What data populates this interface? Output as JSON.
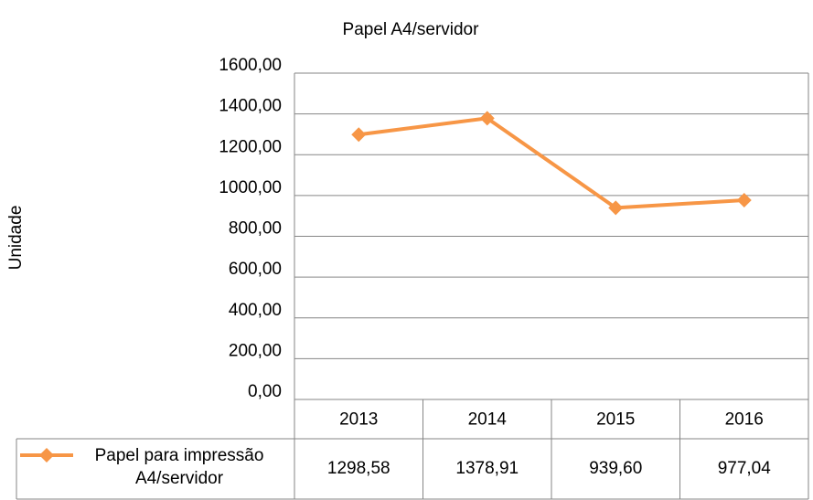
{
  "chart_data": {
    "type": "line",
    "title": "Papel A4/servidor",
    "y_label": "Unidade",
    "categories": [
      "2013",
      "2014",
      "2015",
      "2016"
    ],
    "series": [
      {
        "name": "Papel para impressão A4/servidor",
        "color": "#f79646",
        "values": [
          1298.58,
          1378.91,
          939.6,
          977.04
        ],
        "value_labels": [
          "1298,58",
          "1378,91",
          "939,60",
          "977,04"
        ]
      }
    ],
    "ylim": [
      0,
      1600
    ],
    "yticks": [
      {
        "value": 0,
        "label": "0,00"
      },
      {
        "value": 200,
        "label": "200,00"
      },
      {
        "value": 400,
        "label": "400,00"
      },
      {
        "value": 600,
        "label": "600,00"
      },
      {
        "value": 800,
        "label": "800,00"
      },
      {
        "value": 1000,
        "label": "1000,00"
      },
      {
        "value": 1200,
        "label": "1200,00"
      },
      {
        "value": 1400,
        "label": "1400,00"
      },
      {
        "value": 1600,
        "label": "1600,00"
      }
    ],
    "grid": true,
    "data_table": true
  }
}
